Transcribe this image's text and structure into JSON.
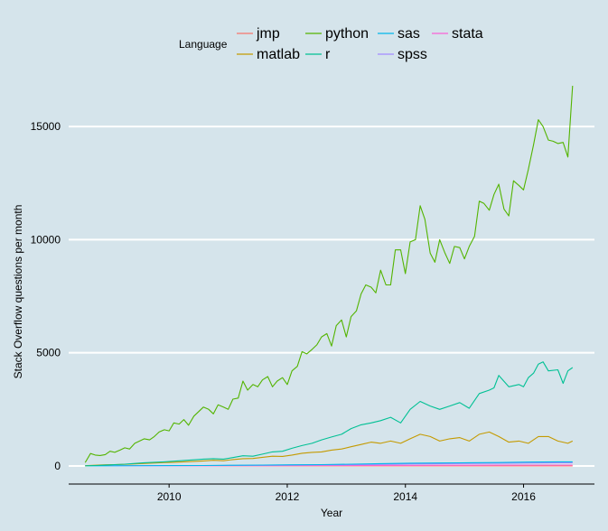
{
  "chart_data": {
    "type": "line",
    "xlabel": "Year",
    "ylabel": "Stack Overflow questions per month",
    "xlim": [
      2008.3,
      2017.2
    ],
    "ylim": [
      -800,
      17000
    ],
    "x_ticks": [
      2010,
      2012,
      2014,
      2016
    ],
    "x_tick_labels": [
      "2010",
      "2012",
      "2014",
      "2016"
    ],
    "y_ticks": [
      0,
      5000,
      10000,
      15000
    ],
    "y_tick_labels": [
      "0",
      "5000",
      "10000",
      "15000"
    ],
    "grid": "horizontal-major",
    "legend": {
      "title": "Language",
      "placement": "top",
      "items": [
        "jmp",
        "matlab",
        "python",
        "r",
        "sas",
        "spss",
        "stata"
      ]
    },
    "colors": {
      "jmp": "#F8766D",
      "matlab": "#C49A00",
      "python": "#53B400",
      "r": "#00C094",
      "sas": "#00B6EB",
      "spss": "#A58AFF",
      "stata": "#FB61D7",
      "background": "#d5e4eb",
      "grid": "#ffffff"
    },
    "series": [
      {
        "name": "python",
        "x": [
          2008.58,
          2008.67,
          2008.75,
          2008.83,
          2008.92,
          2009.0,
          2009.08,
          2009.17,
          2009.25,
          2009.33,
          2009.42,
          2009.5,
          2009.58,
          2009.67,
          2009.75,
          2009.83,
          2009.92,
          2010.0,
          2010.08,
          2010.17,
          2010.25,
          2010.33,
          2010.42,
          2010.5,
          2010.58,
          2010.67,
          2010.75,
          2010.83,
          2010.92,
          2011.0,
          2011.08,
          2011.17,
          2011.25,
          2011.33,
          2011.42,
          2011.5,
          2011.58,
          2011.67,
          2011.75,
          2011.83,
          2011.92,
          2012.0,
          2012.08,
          2012.17,
          2012.25,
          2012.33,
          2012.42,
          2012.5,
          2012.58,
          2012.67,
          2012.75,
          2012.83,
          2012.92,
          2013.0,
          2013.08,
          2013.17,
          2013.25,
          2013.33,
          2013.42,
          2013.5,
          2013.58,
          2013.67,
          2013.75,
          2013.83,
          2013.92,
          2014.0,
          2014.08,
          2014.17,
          2014.25,
          2014.33,
          2014.42,
          2014.5,
          2014.58,
          2014.67,
          2014.75,
          2014.83,
          2014.92,
          2015.0,
          2015.08,
          2015.17,
          2015.25,
          2015.33,
          2015.42,
          2015.5,
          2015.58,
          2015.67,
          2015.75,
          2015.83,
          2015.92,
          2016.0,
          2016.08,
          2016.17,
          2016.25,
          2016.33,
          2016.42,
          2016.5,
          2016.58,
          2016.67,
          2016.75,
          2016.83
        ],
        "y": [
          150,
          550,
          480,
          460,
          500,
          650,
          600,
          700,
          800,
          750,
          1000,
          1100,
          1200,
          1150,
          1300,
          1500,
          1600,
          1550,
          1900,
          1850,
          2050,
          1800,
          2200,
          2400,
          2600,
          2500,
          2300,
          2700,
          2600,
          2500,
          2950,
          3000,
          3750,
          3350,
          3600,
          3500,
          3800,
          3950,
          3500,
          3750,
          3900,
          3600,
          4200,
          4400,
          5050,
          4950,
          5150,
          5350,
          5700,
          5850,
          5300,
          6200,
          6450,
          5700,
          6600,
          6850,
          7600,
          8000,
          7900,
          7650,
          8650,
          8000,
          8000,
          9550,
          9550,
          8500,
          9900,
          10000,
          11500,
          10900,
          9400,
          9000,
          10000,
          9400,
          8950,
          9700,
          9650,
          9150,
          9700,
          10150,
          11700,
          11600,
          11300,
          12000,
          12450,
          11350,
          11050,
          12600,
          12400,
          12200,
          13100,
          14200,
          15300,
          15000,
          14400,
          14350,
          14250,
          14300,
          13650,
          16800
        ]
      },
      {
        "name": "r",
        "x": [
          2008.58,
          2008.75,
          2008.92,
          2009.08,
          2009.25,
          2009.42,
          2009.58,
          2009.75,
          2009.92,
          2010.08,
          2010.25,
          2010.42,
          2010.58,
          2010.75,
          2010.92,
          2011.08,
          2011.25,
          2011.42,
          2011.58,
          2011.75,
          2011.92,
          2012.08,
          2012.25,
          2012.42,
          2012.58,
          2012.75,
          2012.92,
          2013.08,
          2013.25,
          2013.42,
          2013.58,
          2013.75,
          2013.92,
          2014.08,
          2014.25,
          2014.42,
          2014.58,
          2014.75,
          2014.92,
          2015.08,
          2015.25,
          2015.42,
          2015.5,
          2015.58,
          2015.75,
          2015.92,
          2016.0,
          2016.08,
          2016.17,
          2016.25,
          2016.33,
          2016.42,
          2016.58,
          2016.67,
          2016.75,
          2016.83
        ],
        "y": [
          5,
          20,
          40,
          60,
          80,
          110,
          140,
          160,
          180,
          210,
          240,
          270,
          300,
          320,
          300,
          370,
          450,
          430,
          520,
          620,
          650,
          780,
          900,
          1000,
          1150,
          1280,
          1400,
          1650,
          1820,
          1900,
          2000,
          2150,
          1900,
          2500,
          2850,
          2650,
          2500,
          2650,
          2800,
          2550,
          3200,
          3350,
          3450,
          4000,
          3500,
          3600,
          3500,
          3900,
          4100,
          4500,
          4600,
          4200,
          4250,
          3650,
          4200,
          4350
        ]
      },
      {
        "name": "matlab",
        "x": [
          2008.58,
          2008.75,
          2008.92,
          2009.08,
          2009.25,
          2009.42,
          2009.58,
          2009.75,
          2009.92,
          2010.08,
          2010.25,
          2010.42,
          2010.58,
          2010.75,
          2010.92,
          2011.08,
          2011.25,
          2011.42,
          2011.58,
          2011.75,
          2011.92,
          2012.08,
          2012.25,
          2012.42,
          2012.58,
          2012.75,
          2012.92,
          2013.08,
          2013.25,
          2013.42,
          2013.58,
          2013.75,
          2013.92,
          2014.08,
          2014.25,
          2014.42,
          2014.58,
          2014.75,
          2014.92,
          2015.08,
          2015.25,
          2015.42,
          2015.58,
          2015.75,
          2015.92,
          2016.08,
          2016.25,
          2016.42,
          2016.58,
          2016.75,
          2016.83
        ],
        "y": [
          10,
          30,
          50,
          60,
          70,
          90,
          110,
          130,
          150,
          160,
          180,
          200,
          220,
          250,
          230,
          280,
          320,
          330,
          380,
          430,
          420,
          480,
          560,
          600,
          620,
          700,
          750,
          850,
          950,
          1050,
          1000,
          1100,
          1000,
          1200,
          1400,
          1300,
          1100,
          1200,
          1250,
          1100,
          1400,
          1500,
          1300,
          1050,
          1100,
          1000,
          1300,
          1300,
          1100,
          1000,
          1100
        ]
      },
      {
        "name": "sas",
        "x": [
          2008.58,
          2009.08,
          2009.58,
          2010.08,
          2010.58,
          2011.08,
          2011.58,
          2012.08,
          2012.58,
          2013.08,
          2013.58,
          2014.08,
          2014.58,
          2015.08,
          2015.58,
          2016.08,
          2016.58,
          2016.83
        ],
        "y": [
          2,
          5,
          10,
          15,
          20,
          30,
          40,
          50,
          60,
          80,
          100,
          120,
          130,
          140,
          150,
          170,
          180,
          180
        ]
      },
      {
        "name": "spss",
        "x": [
          2008.58,
          2009.08,
          2009.58,
          2010.08,
          2010.58,
          2011.08,
          2011.58,
          2012.08,
          2012.58,
          2013.08,
          2013.58,
          2014.08,
          2014.58,
          2015.08,
          2015.58,
          2016.08,
          2016.58,
          2016.83
        ],
        "y": [
          2,
          5,
          10,
          12,
          15,
          20,
          25,
          35,
          45,
          55,
          70,
          90,
          100,
          110,
          120,
          130,
          140,
          140
        ]
      },
      {
        "name": "stata",
        "x": [
          2008.58,
          2009.08,
          2009.58,
          2010.08,
          2010.58,
          2011.08,
          2011.58,
          2012.08,
          2012.58,
          2013.08,
          2013.58,
          2014.08,
          2014.58,
          2015.08,
          2015.58,
          2016.08,
          2016.58,
          2016.83
        ],
        "y": [
          1,
          2,
          3,
          5,
          8,
          10,
          12,
          15,
          18,
          22,
          25,
          28,
          30,
          32,
          35,
          38,
          40,
          40
        ]
      },
      {
        "name": "jmp",
        "x": [
          2008.58,
          2009.58,
          2010.58,
          2011.58,
          2012.58,
          2013.58,
          2014.58,
          2015.58,
          2016.58,
          2016.83
        ],
        "y": [
          0,
          1,
          1,
          2,
          2,
          3,
          3,
          4,
          4,
          4
        ]
      }
    ]
  }
}
